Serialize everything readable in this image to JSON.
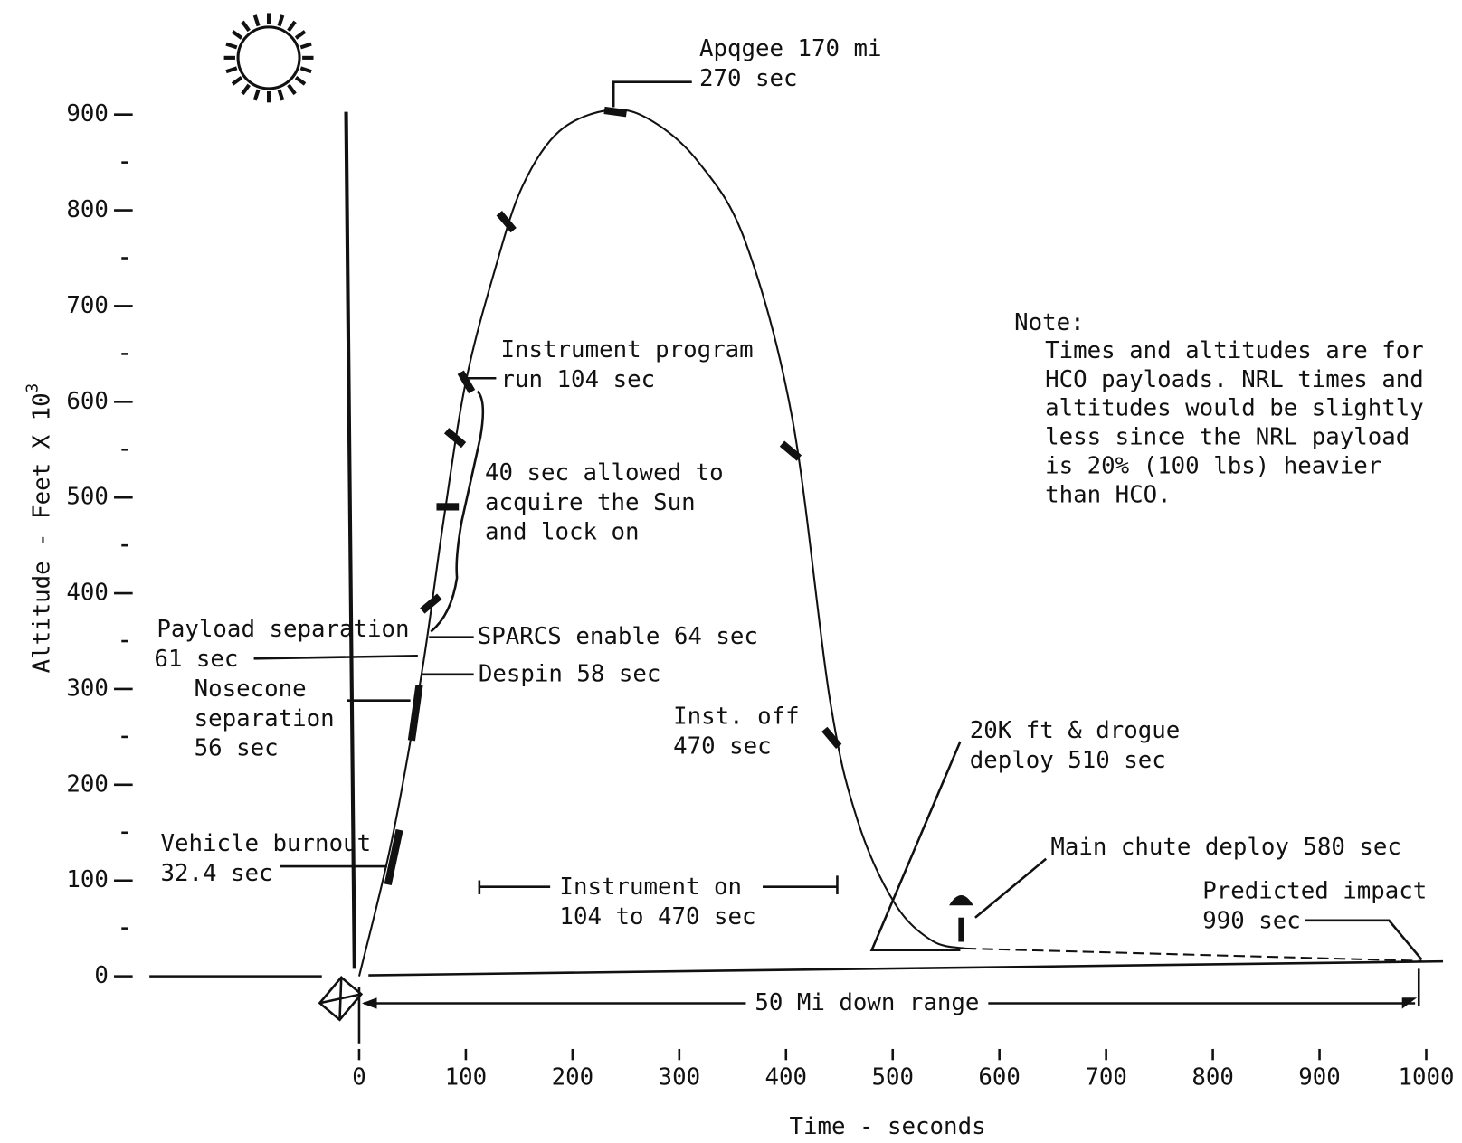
{
  "chart_data": {
    "type": "line",
    "x_label": "Time - seconds",
    "y_label": "Altitude - Feet X 10",
    "y_label_exponent": 3,
    "xlim": [
      0,
      1000
    ],
    "xticks": [
      0,
      100,
      200,
      300,
      400,
      500,
      600,
      700,
      800,
      900,
      1000
    ],
    "ylim": [
      0,
      900
    ],
    "yticks": [
      0,
      100,
      200,
      300,
      400,
      500,
      600,
      700,
      800,
      900
    ],
    "y_minor_ticks": [
      50,
      150,
      250,
      350,
      450,
      550,
      650,
      750,
      850
    ],
    "series": [
      {
        "color": "#111111",
        "style": "solid",
        "x": [
          0,
          31,
          59,
          79,
          100,
          127,
          153,
          188,
          236,
          275,
          319,
          362,
          406,
          441,
          467,
          502,
          537,
          568
        ],
        "values": [
          0,
          144,
          319,
          475,
          621,
          737,
          825,
          883,
          905,
          893,
          849,
          767,
          582,
          290,
          163,
          76,
          37,
          29
        ]
      },
      {
        "color": "#111111",
        "style": "dashed",
        "x": [
          568,
          996
        ],
        "values": [
          29,
          16
        ]
      }
    ],
    "annotations": [
      {
        "lines": [
          "Apqgee 170 mi",
          "270 sec"
        ]
      },
      {
        "lines": [
          "Instrument program",
          "run 104 sec"
        ]
      },
      {
        "lines": [
          "40 sec allowed to",
          "acquire the Sun",
          "and lock on"
        ]
      },
      {
        "lines": [
          "Payload separation",
          "61 sec"
        ]
      },
      {
        "lines": [
          "SPARCS enable 64 sec"
        ]
      },
      {
        "lines": [
          "Despin 58 sec"
        ]
      },
      {
        "lines": [
          "Nosecone",
          "separation",
          "56 sec"
        ]
      },
      {
        "lines": [
          "Vehicle burnout",
          "32.4 sec"
        ]
      },
      {
        "lines": [
          "Instrument on",
          "104 to 470 sec"
        ]
      },
      {
        "lines": [
          "Inst. off",
          "470 sec"
        ]
      },
      {
        "lines": [
          "20K ft & drogue",
          "deploy 510 sec"
        ]
      },
      {
        "lines": [
          "Main chute deploy 580 sec"
        ]
      },
      {
        "lines": [
          "Predicted impact",
          "990 sec"
        ]
      },
      {
        "lines": [
          "50 Mi down range"
        ]
      }
    ],
    "note": {
      "title": "Note:",
      "lines": [
        "Times and altitudes are for",
        "HCO payloads.  NRL times and",
        "altitudes would be slightly",
        "less since the NRL payload",
        "is 20% (100 lbs) heavier",
        "than HCO."
      ]
    }
  }
}
